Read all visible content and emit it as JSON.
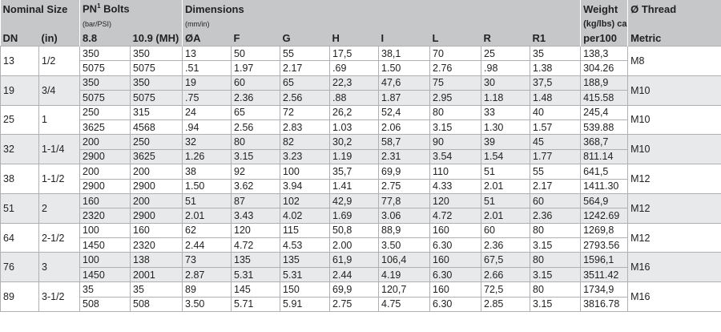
{
  "header": {
    "nominal_size": "Nominal Size",
    "pn_bolts": "PN",
    "pn_sup": "1",
    "pn_bolts_suffix": " Bolts",
    "pn_units": "(bar/PSI)",
    "dimensions": "Dimensions",
    "dimensions_units": "(mm/in)",
    "weight": "Weight",
    "weight_units": "(kg/lbs) ca.",
    "thread": "Ø Thread",
    "col_dn": "DN",
    "col_in": "(in)",
    "col_88": "8.8",
    "col_109": "10.9 (MH)",
    "col_a": "ØA",
    "col_f": "F",
    "col_g": "G",
    "col_h": "H",
    "col_i": "I",
    "col_l": "L",
    "col_r": "R",
    "col_r1": "R1",
    "col_per100": "per100",
    "col_metric": "Metric"
  },
  "rows": [
    {
      "dn": "13",
      "inch": "1/2",
      "thread": "M8",
      "metric": [
        "350",
        "350",
        "13",
        "50",
        "55",
        "17,5",
        "38,1",
        "70",
        "25",
        "35",
        "138,3"
      ],
      "imperial": [
        "5075",
        "5075",
        ".51",
        "1.97",
        "2.17",
        ".69",
        "1.50",
        "2.76",
        ".98",
        "1.38",
        "304.26"
      ]
    },
    {
      "dn": "19",
      "inch": "3/4",
      "thread": "M10",
      "metric": [
        "350",
        "350",
        "19",
        "60",
        "65",
        "22,3",
        "47,6",
        "75",
        "30",
        "37,5",
        "188,9"
      ],
      "imperial": [
        "5075",
        "5075",
        ".75",
        "2.36",
        "2.56",
        ".88",
        "1.87",
        "2.95",
        "1.18",
        "1.48",
        "415.58"
      ]
    },
    {
      "dn": "25",
      "inch": "1",
      "thread": "M10",
      "metric": [
        "250",
        "315",
        "24",
        "65",
        "72",
        "26,2",
        "52,4",
        "80",
        "33",
        "40",
        "245,4"
      ],
      "imperial": [
        "3625",
        "4568",
        ".94",
        "2.56",
        "2.83",
        "1.03",
        "2.06",
        "3.15",
        "1.30",
        "1.57",
        "539.88"
      ]
    },
    {
      "dn": "32",
      "inch": "1-1/4",
      "thread": "M10",
      "metric": [
        "200",
        "250",
        "32",
        "80",
        "82",
        "30,2",
        "58,7",
        "90",
        "39",
        "45",
        "368,7"
      ],
      "imperial": [
        "2900",
        "3625",
        "1.26",
        "3.15",
        "3.23",
        "1.19",
        "2.31",
        "3.54",
        "1.54",
        "1.77",
        "811.14"
      ]
    },
    {
      "dn": "38",
      "inch": "1-1/2",
      "thread": "M12",
      "metric": [
        "200",
        "200",
        "38",
        "92",
        "100",
        "35,7",
        "69,9",
        "110",
        "51",
        "55",
        "641,5"
      ],
      "imperial": [
        "2900",
        "2900",
        "1.50",
        "3.62",
        "3.94",
        "1.41",
        "2.75",
        "4.33",
        "2.01",
        "2.17",
        "1411.30"
      ]
    },
    {
      "dn": "51",
      "inch": "2",
      "thread": "M12",
      "metric": [
        "160",
        "200",
        "51",
        "87",
        "102",
        "42,9",
        "77,8",
        "120",
        "51",
        "60",
        "564,9"
      ],
      "imperial": [
        "2320",
        "2900",
        "2.01",
        "3.43",
        "4.02",
        "1.69",
        "3.06",
        "4.72",
        "2.01",
        "2.36",
        "1242.69"
      ]
    },
    {
      "dn": "64",
      "inch": "2-1/2",
      "thread": "M12",
      "metric": [
        "100",
        "160",
        "62",
        "120",
        "115",
        "50,8",
        "88,9",
        "160",
        "60",
        "80",
        "1269,8"
      ],
      "imperial": [
        "1450",
        "2320",
        "2.44",
        "4.72",
        "4.53",
        "2.00",
        "3.50",
        "6.30",
        "2.36",
        "3.15",
        "2793.56"
      ]
    },
    {
      "dn": "76",
      "inch": "3",
      "thread": "M16",
      "metric": [
        "100",
        "138",
        "73",
        "135",
        "135",
        "61,9",
        "106,4",
        "160",
        "67,5",
        "80",
        "1596,1"
      ],
      "imperial": [
        "1450",
        "2001",
        "2.87",
        "5.31",
        "5.31",
        "2.44",
        "4.19",
        "6.30",
        "2.66",
        "3.15",
        "3511.42"
      ]
    },
    {
      "dn": "89",
      "inch": "3-1/2",
      "thread": "M16",
      "metric": [
        "35",
        "35",
        "89",
        "145",
        "150",
        "69,9",
        "120,7",
        "160",
        "72,5",
        "80",
        "1734,9"
      ],
      "imperial": [
        "508",
        "508",
        "3.50",
        "5.71",
        "5.91",
        "2.75",
        "4.75",
        "6.30",
        "2.85",
        "3.15",
        "3816.78"
      ]
    }
  ]
}
